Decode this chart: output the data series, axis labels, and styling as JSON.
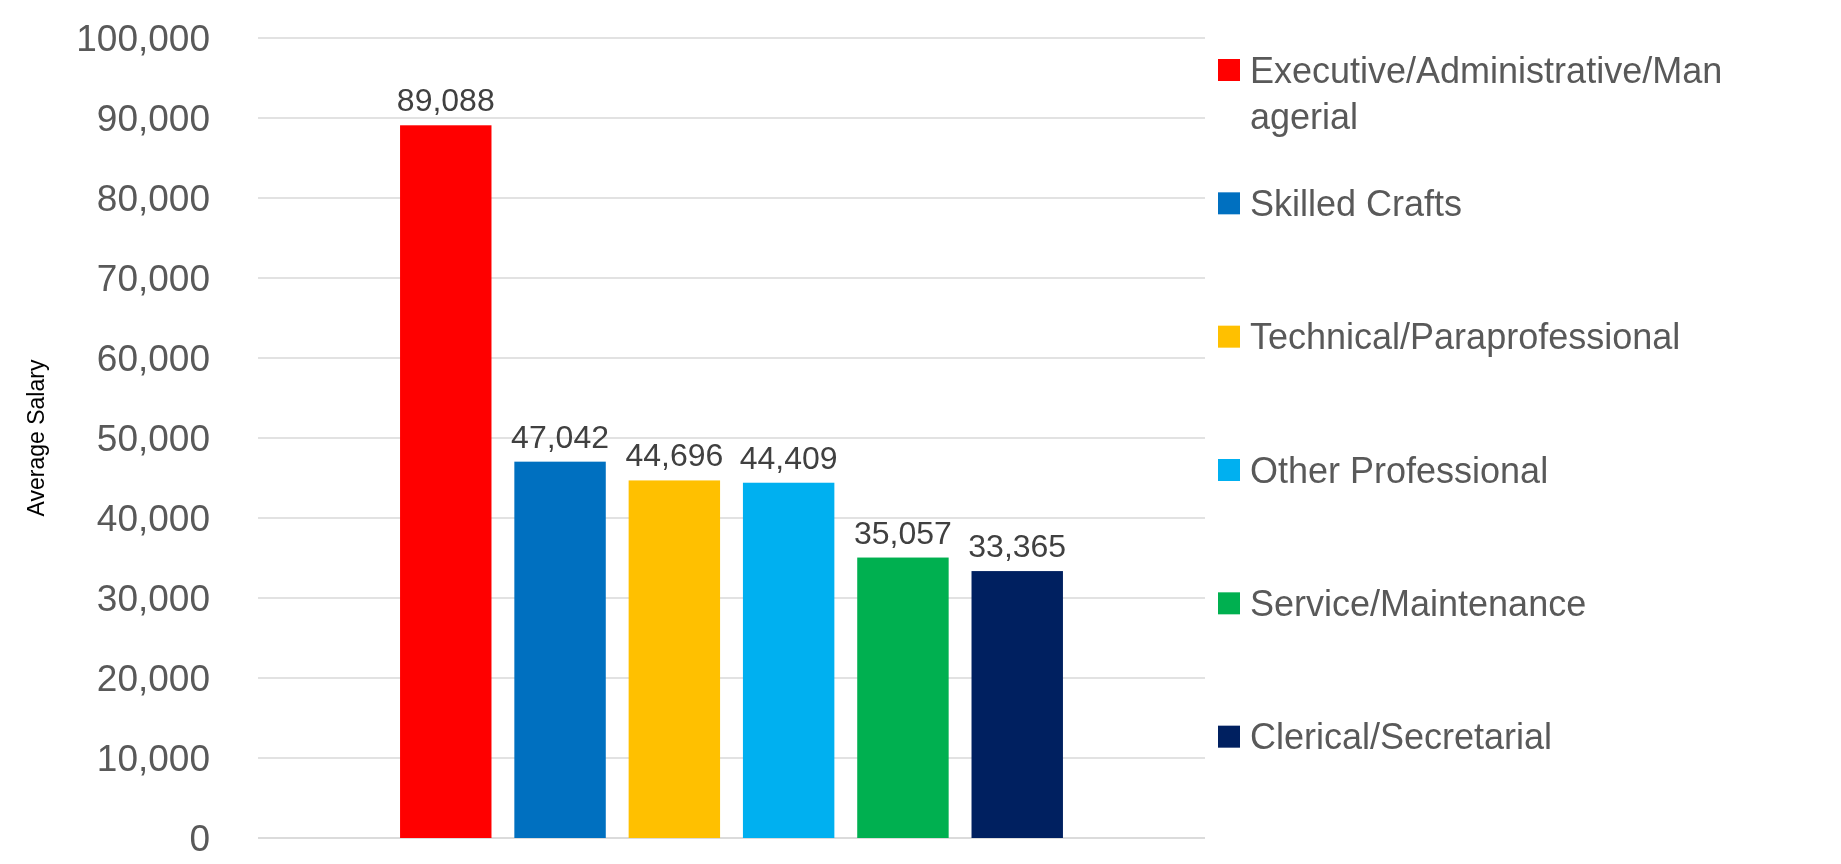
{
  "chart_data": {
    "type": "bar",
    "ylabel": "Average Salary",
    "categories": [
      null
    ],
    "series": [
      {
        "name": "Executive/Administrative/Managerial",
        "color": "#ff0000",
        "values": [
          89088
        ],
        "value_labels": [
          "89,088"
        ]
      },
      {
        "name": "Skilled Crafts",
        "color": "#0070c0",
        "values": [
          47042
        ],
        "value_labels": [
          "47,042"
        ]
      },
      {
        "name": "Technical/Paraprofessional",
        "color": "#ffc000",
        "values": [
          44696
        ],
        "value_labels": [
          "44,696"
        ]
      },
      {
        "name": "Other Professional",
        "color": "#00b0f0",
        "values": [
          44409
        ],
        "value_labels": [
          "44,409"
        ]
      },
      {
        "name": "Service/Maintenance",
        "color": "#00b050",
        "values": [
          35057
        ],
        "value_labels": [
          "35,057"
        ]
      },
      {
        "name": "Clerical/Secretarial",
        "color": "#002060",
        "values": [
          33365
        ],
        "value_labels": [
          "33,365"
        ]
      }
    ],
    "ylim": [
      0,
      100000
    ],
    "yticks": [
      0,
      {
        "value": 10000,
        "label": "10,000"
      },
      {
        "value": 20000,
        "label": "20,000"
      },
      {
        "value": 30000,
        "label": "30,000"
      },
      {
        "value": 40000,
        "label": "40,000"
      },
      {
        "value": 50000,
        "label": "50,000"
      },
      {
        "value": 60000,
        "label": "60,000"
      },
      {
        "value": 70000,
        "label": "70,000"
      },
      {
        "value": 80000,
        "label": "80,000"
      },
      {
        "value": 90000,
        "label": "90,000"
      },
      {
        "value": 100000,
        "label": "100,000"
      }
    ],
    "grid": "y",
    "legend": "right"
  }
}
